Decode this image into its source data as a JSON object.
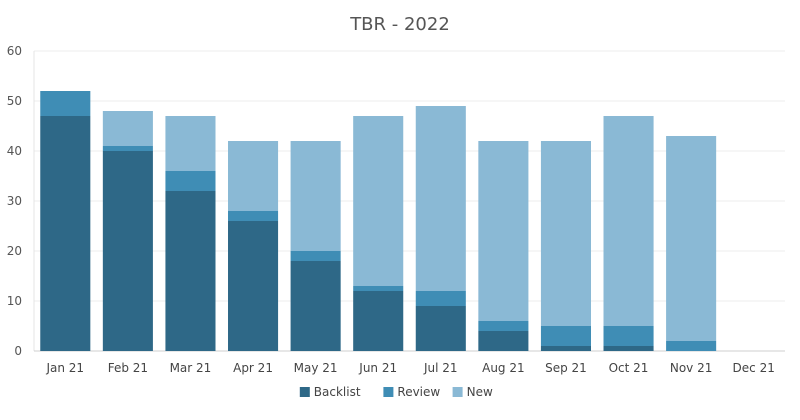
{
  "chart_data": {
    "type": "bar",
    "stacked": true,
    "title": "TBR - 2022",
    "xlabel": "",
    "ylabel": "",
    "ylim": [
      0,
      60
    ],
    "yticks": [
      0,
      10,
      20,
      30,
      40,
      50,
      60
    ],
    "grid": true,
    "legend_position": "bottom",
    "categories": [
      "Jan 21",
      "Feb 21",
      "Mar 21",
      "Apr 21",
      "May 21",
      "Jun 21",
      "Jul 21",
      "Aug 21",
      "Sep 21",
      "Oct 21",
      "Nov 21",
      "Dec 21"
    ],
    "series": [
      {
        "name": "Backlist",
        "color": "#2e6887",
        "values": [
          47,
          40,
          32,
          26,
          18,
          12,
          9,
          4,
          1,
          1,
          0,
          0
        ]
      },
      {
        "name": "Review",
        "color": "#3f8db5",
        "values": [
          5,
          1,
          4,
          2,
          2,
          1,
          3,
          2,
          4,
          4,
          2,
          0
        ]
      },
      {
        "name": "New",
        "color": "#8ab9d5",
        "values": [
          0,
          7,
          11,
          14,
          22,
          34,
          37,
          36,
          37,
          42,
          41,
          0
        ]
      }
    ]
  }
}
